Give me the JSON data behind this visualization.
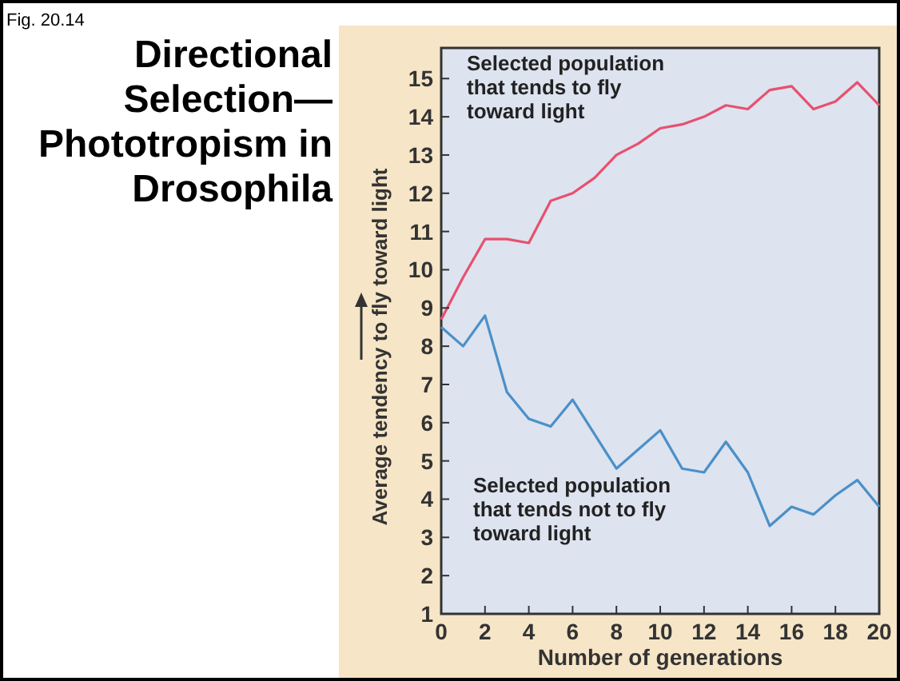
{
  "chart_data": {
    "type": "line",
    "title": "Directional Selection—Phototropism in Drosophila",
    "xlabel": "Number of generations",
    "ylabel": "Average tendency to fly toward light",
    "annotations": [
      "Fig. 20.14"
    ],
    "x": [
      0,
      1,
      2,
      3,
      4,
      5,
      6,
      7,
      8,
      9,
      10,
      11,
      12,
      13,
      14,
      15,
      16,
      17,
      18,
      19,
      20
    ],
    "xlim": [
      0,
      20
    ],
    "xticks": [
      0,
      2,
      4,
      6,
      8,
      10,
      12,
      14,
      16,
      18,
      20
    ],
    "ylim": [
      1,
      15.8
    ],
    "yticks": [
      1,
      2,
      3,
      4,
      5,
      6,
      7,
      8,
      9,
      10,
      11,
      12,
      13,
      14,
      15
    ],
    "grid": false,
    "marker": "none",
    "line_style": "solid",
    "series": [
      {
        "name": "Selected population that tends to fly toward light",
        "color": "#e8506e",
        "values": [
          8.7,
          9.8,
          10.8,
          10.8,
          10.7,
          11.8,
          12.0,
          12.4,
          13.0,
          13.3,
          13.7,
          13.8,
          14.0,
          14.3,
          14.2,
          14.7,
          14.8,
          14.2,
          14.4,
          14.9,
          14.3
        ]
      },
      {
        "name": "Selected population that tends not to fly toward light",
        "color": "#4a90c8",
        "values": [
          8.5,
          8.0,
          8.8,
          6.8,
          6.1,
          5.9,
          6.6,
          5.7,
          4.8,
          5.3,
          5.8,
          4.8,
          4.7,
          5.5,
          4.7,
          3.3,
          3.8,
          3.6,
          4.1,
          4.5,
          3.8
        ]
      }
    ]
  }
}
